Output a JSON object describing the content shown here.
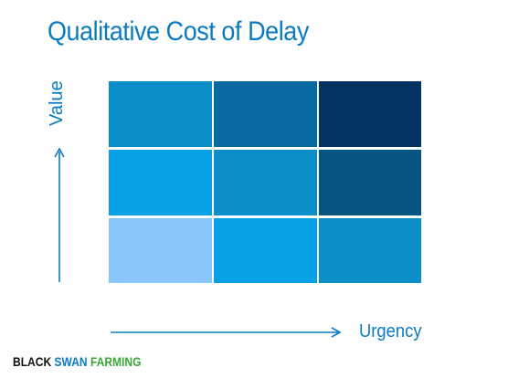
{
  "title": "Qualitative Cost of Delay",
  "axes": {
    "y_label": "Value",
    "x_label": "Urgency"
  },
  "matrix": {
    "rows": [
      {
        "cells": [
          {
            "color": "#0a8fc8"
          },
          {
            "color": "#0768a2"
          },
          {
            "color": "#043262"
          }
        ]
      },
      {
        "cells": [
          {
            "color": "#06a1e4"
          },
          {
            "color": "#0a8fc8"
          },
          {
            "color": "#075582"
          }
        ]
      },
      {
        "cells": [
          {
            "color": "#89c7fb"
          },
          {
            "color": "#06a1e4"
          },
          {
            "color": "#0a8fc8"
          }
        ]
      }
    ]
  },
  "brand": {
    "word1": "BLACK",
    "word2": "SWAN",
    "word3": "FARMING"
  },
  "colors": {
    "accent": "#0a7bc1",
    "brand_green": "#3aa635",
    "brand_black": "#111111"
  }
}
